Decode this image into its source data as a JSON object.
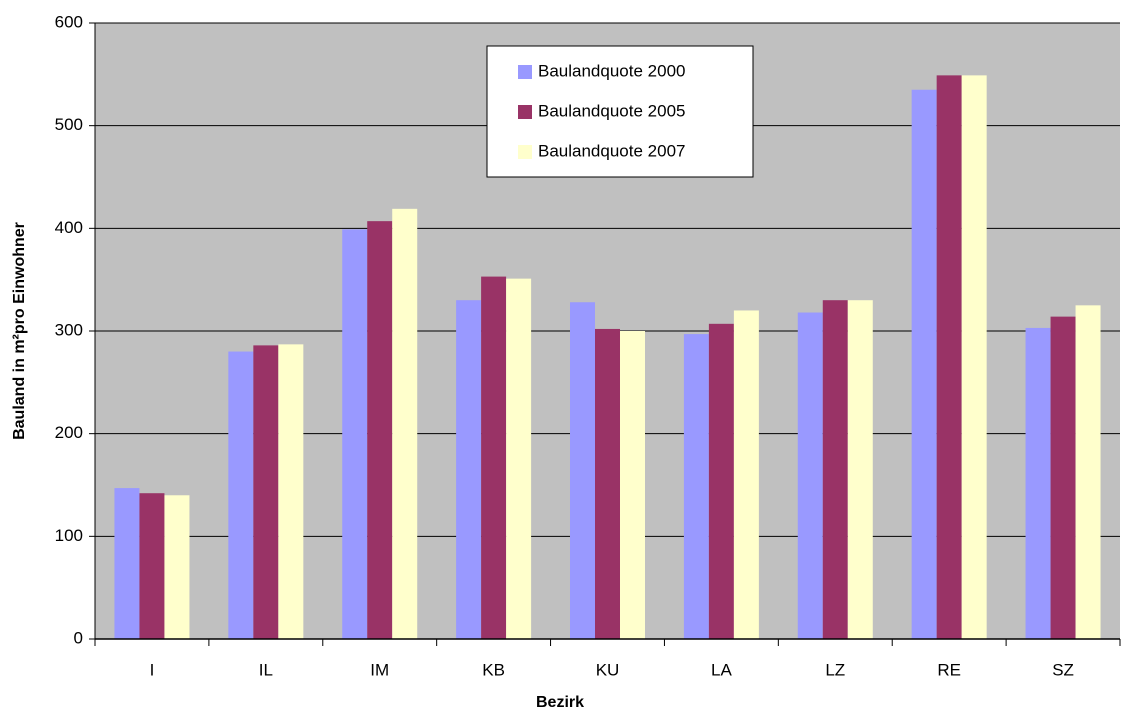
{
  "chart_data": {
    "type": "bar",
    "x_label": "Bezirk",
    "y_label": "Bauland in m²pro Einwohner",
    "categories": [
      "I",
      "IL",
      "IM",
      "KB",
      "KU",
      "LA",
      "LZ",
      "RE",
      "SZ"
    ],
    "series": [
      {
        "name": "Baulandquote 2000",
        "color": "#9999ff",
        "values": [
          147,
          280,
          399,
          330,
          328,
          297,
          318,
          535,
          303
        ]
      },
      {
        "name": "Baulandquote 2005",
        "color": "#993366",
        "values": [
          142,
          286,
          407,
          353,
          302,
          307,
          330,
          549,
          314
        ]
      },
      {
        "name": "Baulandquote 2007",
        "color": "#ffffcc",
        "values": [
          140,
          287,
          419,
          351,
          300,
          320,
          330,
          549,
          325
        ]
      }
    ],
    "ylim": [
      0,
      600
    ],
    "yticks": [
      0,
      100,
      200,
      300,
      400,
      500,
      600
    ],
    "grid": true
  }
}
